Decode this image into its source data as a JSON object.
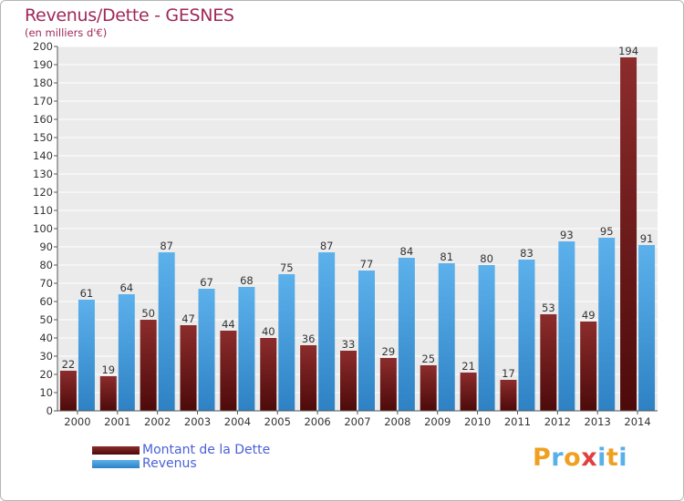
{
  "colors": {
    "title": "#a0285a",
    "debt_top": "#8c2c2c",
    "debt_bottom": "#4d0a0a",
    "revenue_top": "#5cb1ec",
    "revenue_bottom": "#2e82c4",
    "legend_text": "#4a60d8",
    "grid": "#ffffff",
    "plot_bg": "#ebebeb"
  },
  "logo": {
    "letters": [
      "P",
      "r",
      "o",
      "x",
      "i",
      "t",
      "i"
    ],
    "colors": [
      "#f0a020",
      "#58b0e8",
      "#f0a020",
      "#e04040",
      "#58b0e8",
      "#f0a020",
      "#58b0e8"
    ]
  },
  "chart_data": {
    "type": "bar",
    "title": "Revenus/Dette - GESNES",
    "subtitle": "(en milliers d'€)",
    "categories": [
      "2000",
      "2001",
      "2002",
      "2003",
      "2004",
      "2005",
      "2006",
      "2007",
      "2008",
      "2009",
      "2010",
      "2011",
      "2012",
      "2013",
      "2014"
    ],
    "series": [
      {
        "name": "Montant de la Dette",
        "values": [
          22,
          19,
          50,
          47,
          44,
          40,
          36,
          33,
          29,
          25,
          21,
          17,
          53,
          49,
          194
        ]
      },
      {
        "name": "Revenus",
        "values": [
          61,
          64,
          87,
          67,
          68,
          75,
          87,
          77,
          84,
          81,
          80,
          83,
          93,
          95,
          91
        ]
      }
    ],
    "ylim": [
      0,
      200
    ],
    "yticks": [
      0,
      10,
      20,
      30,
      40,
      50,
      60,
      70,
      80,
      90,
      100,
      110,
      120,
      130,
      140,
      150,
      160,
      170,
      180,
      190,
      200
    ],
    "grid": true,
    "legend_position": "bottom-left"
  }
}
